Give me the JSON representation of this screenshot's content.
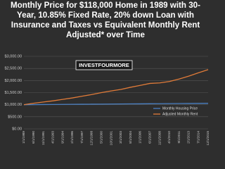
{
  "chart_data": {
    "type": "line",
    "title": "Monthly Price for $118,000 Home in 1989 with 30-Year, 10.85% Fixed Rate, 20% down Loan with Insurance and Taxes vs Equivalent Monthly Rent Adjusted* over Time",
    "watermark": "INVESTFOURMORE",
    "categories": [
      "1/1/1989",
      "6/1/1990",
      "11/1/1991",
      "4/1/1993",
      "9/1/1994",
      "2/1/1996",
      "7/1/1997",
      "12/1/1998",
      "5/1/2000",
      "10/1/2001",
      "3/1/2003",
      "8/1/2004",
      "1/1/2006",
      "6/1/2007",
      "11/1/2008",
      "4/1/2010",
      "9/1/2011",
      "2/1/2013",
      "7/1/2014",
      "12/1/2015"
    ],
    "series": [
      {
        "name": "Monthly Housing Price",
        "color": "#4a7fc1",
        "values": [
          1000,
          1003,
          1006,
          1009,
          1012,
          1015,
          1018,
          1021,
          1024,
          1027,
          1030,
          1033,
          1036,
          1039,
          1042,
          1045,
          1048,
          1051,
          1054,
          1057
        ]
      },
      {
        "name": "Adjusted Monthly Rent",
        "color": "#e07b39",
        "values": [
          1000,
          1060,
          1110,
          1160,
          1220,
          1280,
          1350,
          1420,
          1500,
          1570,
          1630,
          1720,
          1800,
          1880,
          1900,
          1960,
          2060,
          2180,
          2320,
          2450
        ]
      }
    ],
    "ylim": [
      0,
      3000
    ],
    "yticks": [
      {
        "value": 0,
        "label": "$0.00"
      },
      {
        "value": 500,
        "label": "$500.00"
      },
      {
        "value": 1000,
        "label": "$1,000.00"
      },
      {
        "value": 1500,
        "label": "$1,500.00"
      },
      {
        "value": 2000,
        "label": "$2,000.00"
      },
      {
        "value": 2500,
        "label": "$2,500.00"
      },
      {
        "value": 3000,
        "label": "$3,000.00"
      }
    ],
    "grid": true,
    "legend": "right"
  }
}
